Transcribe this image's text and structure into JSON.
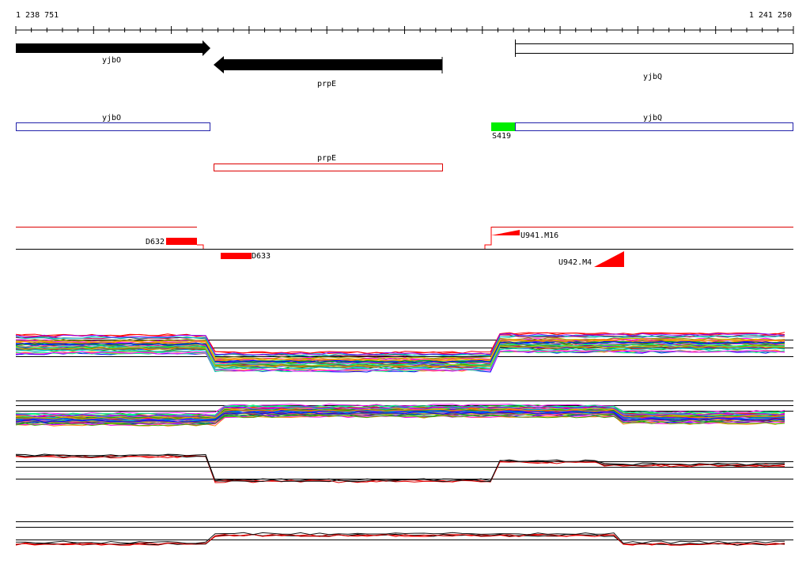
{
  "ruler": {
    "start": "1 238 751",
    "end": "1 241 250"
  },
  "genes": [
    {
      "label": "yjbO"
    },
    {
      "label": "prpE"
    },
    {
      "label": "yjbQ"
    }
  ],
  "annotations": [
    {
      "label": "yjbO"
    },
    {
      "label": "yjbQ"
    },
    {
      "label": "S419"
    },
    {
      "label": "prpE"
    }
  ],
  "features": [
    {
      "label": "D632"
    },
    {
      "label": "D633"
    },
    {
      "label": "U941.M16"
    },
    {
      "label": "U942.M4"
    }
  ]
}
